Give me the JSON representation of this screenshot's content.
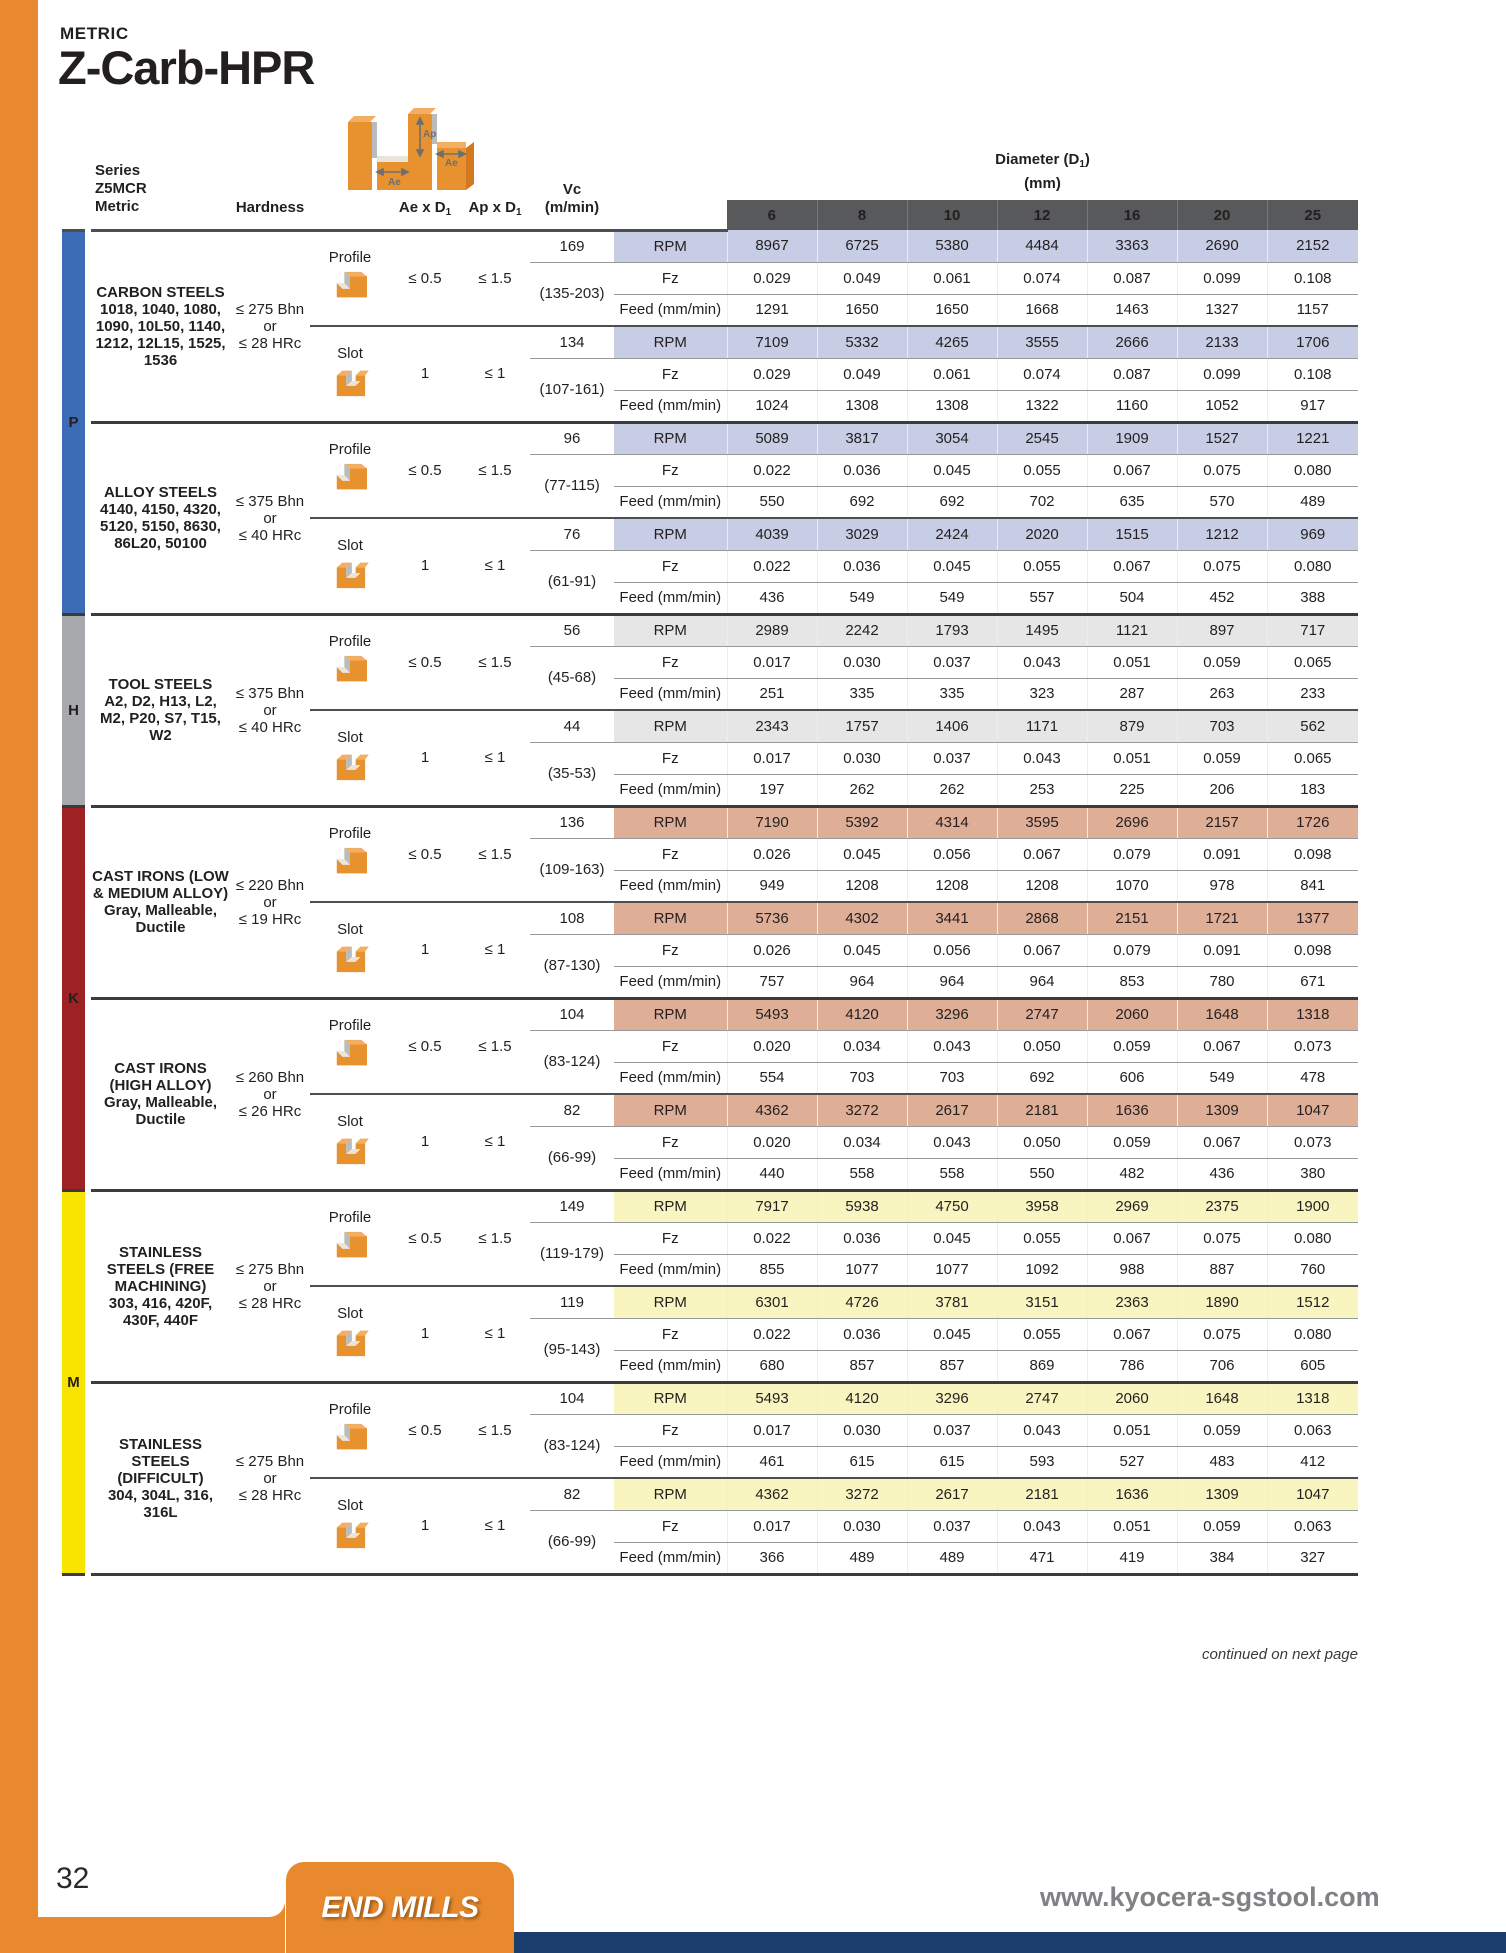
{
  "page": {
    "eyebrow": "METRIC",
    "title": "Z-Carb-HPR",
    "continued": "continued on next page",
    "page_number": "32",
    "footer_badge": "END MILLS",
    "website": "www.kyocera-sgstool.com",
    "accent_orange": "#E8892D",
    "navy": "#1C3E6E"
  },
  "diagram": {
    "label_ae_left": "Ae",
    "label_ap": "Ap",
    "label_ae_right": "Ae"
  },
  "table": {
    "headers": {
      "series_lines": [
        "Series",
        "Z5MCR",
        "Metric"
      ],
      "hardness": "Hardness",
      "ae_prefix": "Ae x D",
      "ap_prefix": "Ap x D",
      "sub": "1",
      "vc": "Vc",
      "vc_unit": "(m/min)",
      "diameter_prefix": "Diameter (D",
      "diameter_close": ")",
      "diameter_unit": "(mm)",
      "diameters": [
        "6",
        "8",
        "10",
        "12",
        "16",
        "20",
        "25"
      ],
      "band_color": "#58595B"
    },
    "row_labels": [
      "RPM",
      "Fz",
      "Feed (mm/min)"
    ],
    "groups": [
      {
        "letter": "P",
        "bar_color": "#3B6CB5",
        "rpm_bg": "#C7CDE4",
        "materials": [
          {
            "name": "CARBON STEELS",
            "grades": "1018, 1040, 1080, 1090, 10L50, 1140, 1212, 12L15, 1525, 1536",
            "hardness_lines": [
              "≤ 275 Bhn",
              "or",
              "≤ 28 HRc"
            ],
            "blocks": [
              {
                "type": "Profile",
                "ae": "≤ 0.5",
                "ap": "≤ 1.5",
                "vc": "169",
                "vc_range": "(135-203)",
                "rpm": [
                  "8967",
                  "6725",
                  "5380",
                  "4484",
                  "3363",
                  "2690",
                  "2152"
                ],
                "fz": [
                  "0.029",
                  "0.049",
                  "0.061",
                  "0.074",
                  "0.087",
                  "0.099",
                  "0.108"
                ],
                "feed": [
                  "1291",
                  "1650",
                  "1650",
                  "1668",
                  "1463",
                  "1327",
                  "1157"
                ]
              },
              {
                "type": "Slot",
                "ae": "1",
                "ap": "≤ 1",
                "vc": "134",
                "vc_range": "(107-161)",
                "rpm": [
                  "7109",
                  "5332",
                  "4265",
                  "3555",
                  "2666",
                  "2133",
                  "1706"
                ],
                "fz": [
                  "0.029",
                  "0.049",
                  "0.061",
                  "0.074",
                  "0.087",
                  "0.099",
                  "0.108"
                ],
                "feed": [
                  "1024",
                  "1308",
                  "1308",
                  "1322",
                  "1160",
                  "1052",
                  "917"
                ]
              }
            ]
          },
          {
            "name": "ALLOY STEELS",
            "grades": "4140, 4150, 4320, 5120, 5150, 8630, 86L20, 50100",
            "hardness_lines": [
              "≤ 375 Bhn",
              "or",
              "≤ 40 HRc"
            ],
            "blocks": [
              {
                "type": "Profile",
                "ae": "≤ 0.5",
                "ap": "≤ 1.5",
                "vc": "96",
                "vc_range": "(77-115)",
                "rpm": [
                  "5089",
                  "3817",
                  "3054",
                  "2545",
                  "1909",
                  "1527",
                  "1221"
                ],
                "fz": [
                  "0.022",
                  "0.036",
                  "0.045",
                  "0.055",
                  "0.067",
                  "0.075",
                  "0.080"
                ],
                "feed": [
                  "550",
                  "692",
                  "692",
                  "702",
                  "635",
                  "570",
                  "489"
                ]
              },
              {
                "type": "Slot",
                "ae": "1",
                "ap": "≤ 1",
                "vc": "76",
                "vc_range": "(61-91)",
                "rpm": [
                  "4039",
                  "3029",
                  "2424",
                  "2020",
                  "1515",
                  "1212",
                  "969"
                ],
                "fz": [
                  "0.022",
                  "0.036",
                  "0.045",
                  "0.055",
                  "0.067",
                  "0.075",
                  "0.080"
                ],
                "feed": [
                  "436",
                  "549",
                  "549",
                  "557",
                  "504",
                  "452",
                  "388"
                ]
              }
            ]
          }
        ]
      },
      {
        "letter": "H",
        "bar_color": "#A7A9AC",
        "rpm_bg": "#E6E6E7",
        "materials": [
          {
            "name": "TOOL STEELS",
            "grades": "A2, D2, H13, L2, M2, P20, S7, T15, W2",
            "hardness_lines": [
              "≤ 375 Bhn",
              "or",
              "≤ 40 HRc"
            ],
            "blocks": [
              {
                "type": "Profile",
                "ae": "≤ 0.5",
                "ap": "≤ 1.5",
                "vc": "56",
                "vc_range": "(45-68)",
                "rpm": [
                  "2989",
                  "2242",
                  "1793",
                  "1495",
                  "1121",
                  "897",
                  "717"
                ],
                "fz": [
                  "0.017",
                  "0.030",
                  "0.037",
                  "0.043",
                  "0.051",
                  "0.059",
                  "0.065"
                ],
                "feed": [
                  "251",
                  "335",
                  "335",
                  "323",
                  "287",
                  "263",
                  "233"
                ]
              },
              {
                "type": "Slot",
                "ae": "1",
                "ap": "≤ 1",
                "vc": "44",
                "vc_range": "(35-53)",
                "rpm": [
                  "2343",
                  "1757",
                  "1406",
                  "1171",
                  "879",
                  "703",
                  "562"
                ],
                "fz": [
                  "0.017",
                  "0.030",
                  "0.037",
                  "0.043",
                  "0.051",
                  "0.059",
                  "0.065"
                ],
                "feed": [
                  "197",
                  "262",
                  "262",
                  "253",
                  "225",
                  "206",
                  "183"
                ]
              }
            ]
          }
        ]
      },
      {
        "letter": "K",
        "bar_color": "#9E2123",
        "rpm_bg": "#DFAE97",
        "materials": [
          {
            "name": "CAST IRONS (LOW & MEDIUM ALLOY)",
            "grades": "Gray, Malleable, Ductile",
            "hardness_lines": [
              "≤ 220 Bhn",
              "or",
              "≤ 19 HRc"
            ],
            "blocks": [
              {
                "type": "Profile",
                "ae": "≤ 0.5",
                "ap": "≤ 1.5",
                "vc": "136",
                "vc_range": "(109-163)",
                "rpm": [
                  "7190",
                  "5392",
                  "4314",
                  "3595",
                  "2696",
                  "2157",
                  "1726"
                ],
                "fz": [
                  "0.026",
                  "0.045",
                  "0.056",
                  "0.067",
                  "0.079",
                  "0.091",
                  "0.098"
                ],
                "feed": [
                  "949",
                  "1208",
                  "1208",
                  "1208",
                  "1070",
                  "978",
                  "841"
                ]
              },
              {
                "type": "Slot",
                "ae": "1",
                "ap": "≤ 1",
                "vc": "108",
                "vc_range": "(87-130)",
                "rpm": [
                  "5736",
                  "4302",
                  "3441",
                  "2868",
                  "2151",
                  "1721",
                  "1377"
                ],
                "fz": [
                  "0.026",
                  "0.045",
                  "0.056",
                  "0.067",
                  "0.079",
                  "0.091",
                  "0.098"
                ],
                "feed": [
                  "757",
                  "964",
                  "964",
                  "964",
                  "853",
                  "780",
                  "671"
                ]
              }
            ]
          },
          {
            "name": "CAST IRONS (HIGH ALLOY)",
            "grades": "Gray, Malleable, Ductile",
            "hardness_lines": [
              "≤ 260 Bhn",
              "or",
              "≤ 26 HRc"
            ],
            "blocks": [
              {
                "type": "Profile",
                "ae": "≤ 0.5",
                "ap": "≤ 1.5",
                "vc": "104",
                "vc_range": "(83-124)",
                "rpm": [
                  "5493",
                  "4120",
                  "3296",
                  "2747",
                  "2060",
                  "1648",
                  "1318"
                ],
                "fz": [
                  "0.020",
                  "0.034",
                  "0.043",
                  "0.050",
                  "0.059",
                  "0.067",
                  "0.073"
                ],
                "feed": [
                  "554",
                  "703",
                  "703",
                  "692",
                  "606",
                  "549",
                  "478"
                ]
              },
              {
                "type": "Slot",
                "ae": "1",
                "ap": "≤ 1",
                "vc": "82",
                "vc_range": "(66-99)",
                "rpm": [
                  "4362",
                  "3272",
                  "2617",
                  "2181",
                  "1636",
                  "1309",
                  "1047"
                ],
                "fz": [
                  "0.020",
                  "0.034",
                  "0.043",
                  "0.050",
                  "0.059",
                  "0.067",
                  "0.073"
                ],
                "feed": [
                  "440",
                  "558",
                  "558",
                  "550",
                  "482",
                  "436",
                  "380"
                ]
              }
            ]
          }
        ]
      },
      {
        "letter": "M",
        "bar_color": "#F9E300",
        "rpm_bg": "#F8F5C0",
        "materials": [
          {
            "name": "STAINLESS STEELS (FREE MACHINING)",
            "grades": "303, 416, 420F, 430F, 440F",
            "hardness_lines": [
              "≤ 275 Bhn",
              "or",
              "≤ 28 HRc"
            ],
            "blocks": [
              {
                "type": "Profile",
                "ae": "≤ 0.5",
                "ap": "≤ 1.5",
                "vc": "149",
                "vc_range": "(119-179)",
                "rpm": [
                  "7917",
                  "5938",
                  "4750",
                  "3958",
                  "2969",
                  "2375",
                  "1900"
                ],
                "fz": [
                  "0.022",
                  "0.036",
                  "0.045",
                  "0.055",
                  "0.067",
                  "0.075",
                  "0.080"
                ],
                "feed": [
                  "855",
                  "1077",
                  "1077",
                  "1092",
                  "988",
                  "887",
                  "760"
                ]
              },
              {
                "type": "Slot",
                "ae": "1",
                "ap": "≤ 1",
                "vc": "119",
                "vc_range": "(95-143)",
                "rpm": [
                  "6301",
                  "4726",
                  "3781",
                  "3151",
                  "2363",
                  "1890",
                  "1512"
                ],
                "fz": [
                  "0.022",
                  "0.036",
                  "0.045",
                  "0.055",
                  "0.067",
                  "0.075",
                  "0.080"
                ],
                "feed": [
                  "680",
                  "857",
                  "857",
                  "869",
                  "786",
                  "706",
                  "605"
                ]
              }
            ]
          },
          {
            "name": "STAINLESS STEELS (DIFFICULT)",
            "grades": "304, 304L, 316, 316L",
            "hardness_lines": [
              "≤ 275 Bhn",
              "or",
              "≤ 28 HRc"
            ],
            "blocks": [
              {
                "type": "Profile",
                "ae": "≤ 0.5",
                "ap": "≤ 1.5",
                "vc": "104",
                "vc_range": "(83-124)",
                "rpm": [
                  "5493",
                  "4120",
                  "3296",
                  "2747",
                  "2060",
                  "1648",
                  "1318"
                ],
                "fz": [
                  "0.017",
                  "0.030",
                  "0.037",
                  "0.043",
                  "0.051",
                  "0.059",
                  "0.063"
                ],
                "feed": [
                  "461",
                  "615",
                  "615",
                  "593",
                  "527",
                  "483",
                  "412"
                ]
              },
              {
                "type": "Slot",
                "ae": "1",
                "ap": "≤ 1",
                "vc": "82",
                "vc_range": "(66-99)",
                "rpm": [
                  "4362",
                  "3272",
                  "2617",
                  "2181",
                  "1636",
                  "1309",
                  "1047"
                ],
                "fz": [
                  "0.017",
                  "0.030",
                  "0.037",
                  "0.043",
                  "0.051",
                  "0.059",
                  "0.063"
                ],
                "feed": [
                  "366",
                  "489",
                  "489",
                  "471",
                  "419",
                  "384",
                  "327"
                ]
              }
            ]
          }
        ]
      }
    ]
  }
}
